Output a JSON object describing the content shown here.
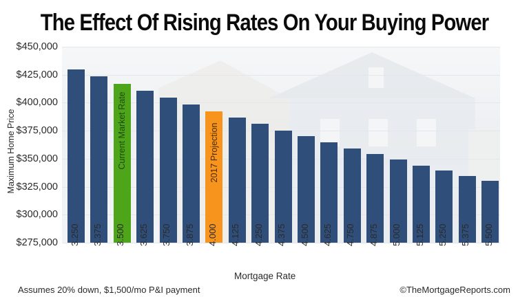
{
  "title": "The Effect Of Rising Rates On Your Buying Power",
  "footnote": "Assumes 20% down, $1,500/mo P&I payment",
  "credit": "©TheMortgageReports.com",
  "colors": {
    "default_bar": "#2f4e7a",
    "current_bar": "#4ea51a",
    "projection_bar": "#f7941d",
    "current_text": "#1d4a0c",
    "projection_text": "#4a2a00"
  },
  "chart_data": {
    "type": "bar",
    "title": "The Effect Of Rising Rates On Your Buying Power",
    "xlabel": "Mortgage Rate",
    "ylabel": "Maximum Home Price",
    "ylim": [
      275000,
      450000
    ],
    "y_ticks": [
      "$450,000",
      "$425,000",
      "$400,000",
      "$375,000",
      "$350,000",
      "$325,000",
      "$300,000",
      "$275,000"
    ],
    "grid": true,
    "legend": null,
    "categories": [
      "3.250",
      "3.375",
      "3.500",
      "3.625",
      "3.750",
      "3.875",
      "4.000",
      "4.125",
      "4.250",
      "4.375",
      "4.500",
      "4.625",
      "4.750",
      "4.875",
      "5.000",
      "5.125",
      "5.250",
      "5.375",
      "5.500"
    ],
    "values": [
      430000,
      423500,
      417000,
      410500,
      404500,
      398500,
      392500,
      386500,
      381000,
      375000,
      370000,
      364500,
      359000,
      354000,
      349000,
      344000,
      339500,
      334500,
      330000
    ],
    "annotations": [
      {
        "category": "3.500",
        "label": "Current Market Rate",
        "highlight": "green"
      },
      {
        "category": "4.000",
        "label": "2017 Projection",
        "highlight": "orange"
      }
    ]
  }
}
